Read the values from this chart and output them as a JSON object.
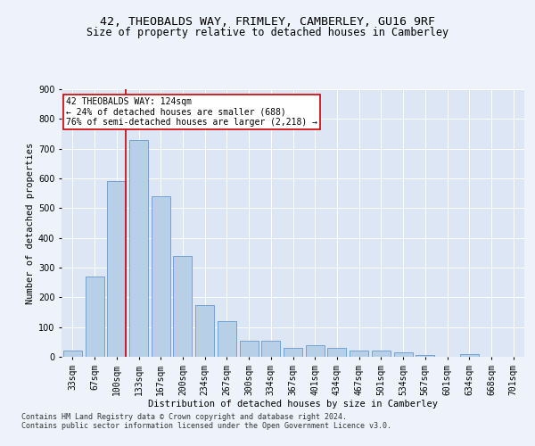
{
  "title_line1": "42, THEOBALDS WAY, FRIMLEY, CAMBERLEY, GU16 9RF",
  "title_line2": "Size of property relative to detached houses in Camberley",
  "xlabel": "Distribution of detached houses by size in Camberley",
  "ylabel": "Number of detached properties",
  "categories": [
    "33sqm",
    "67sqm",
    "100sqm",
    "133sqm",
    "167sqm",
    "200sqm",
    "234sqm",
    "267sqm",
    "300sqm",
    "334sqm",
    "367sqm",
    "401sqm",
    "434sqm",
    "467sqm",
    "501sqm",
    "534sqm",
    "567sqm",
    "601sqm",
    "634sqm",
    "668sqm",
    "701sqm"
  ],
  "values": [
    20,
    270,
    590,
    730,
    540,
    340,
    175,
    120,
    55,
    55,
    30,
    40,
    30,
    20,
    20,
    15,
    5,
    0,
    10,
    0,
    0
  ],
  "bar_color": "#b8cfe8",
  "bar_edge_color": "#6699cc",
  "vline_color": "#cc0000",
  "annotation_text": "42 THEOBALDS WAY: 124sqm\n← 24% of detached houses are smaller (688)\n76% of semi-detached houses are larger (2,218) →",
  "annotation_box_facecolor": "#ffffff",
  "annotation_box_edgecolor": "#cc0000",
  "ylim": [
    0,
    900
  ],
  "yticks": [
    0,
    100,
    200,
    300,
    400,
    500,
    600,
    700,
    800,
    900
  ],
  "footer_line1": "Contains HM Land Registry data © Crown copyright and database right 2024.",
  "footer_line2": "Contains public sector information licensed under the Open Government Licence v3.0.",
  "background_color": "#edf2fb",
  "plot_bg_color": "#dce6f5",
  "grid_color": "#ffffff",
  "title1_fontsize": 9.5,
  "title2_fontsize": 8.5,
  "axis_label_fontsize": 7.5,
  "tick_fontsize": 7,
  "annotation_fontsize": 7,
  "footer_fontsize": 6
}
